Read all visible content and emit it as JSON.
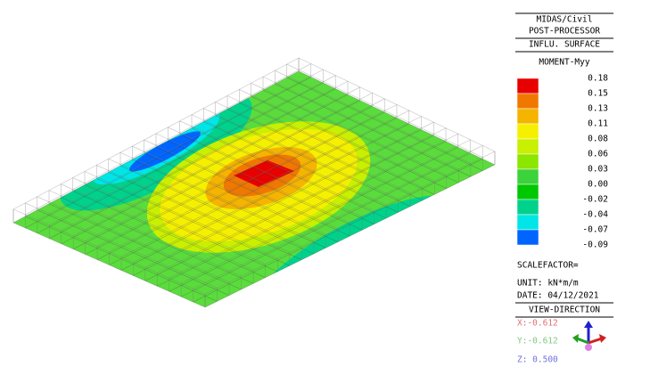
{
  "header": {
    "lines": [
      "MIDAS/Civil",
      "POST-PROCESSOR",
      "INFLU. SURFACE"
    ],
    "result": "MOMENT-Myy"
  },
  "legend": {
    "levels": [
      "0.18",
      "0.15",
      "0.13",
      "0.11",
      "0.08",
      "0.06",
      "0.03",
      "0.00",
      "-0.02",
      "-0.04",
      "-0.07",
      "-0.09"
    ],
    "colors": [
      "#e80000",
      "#f07800",
      "#f5b400",
      "#f5f000",
      "#c8f000",
      "#8ce600",
      "#3cd23c",
      "#00c800",
      "#00d28c",
      "#00e6e6",
      "#0064ff"
    ]
  },
  "info": {
    "scalefactor": "SCALEFACTOR=",
    "unit": "UNIT: kN*m/m",
    "date": "DATE: 04/12/2021"
  },
  "view": {
    "title": "VIEW-DIRECTION",
    "x": "X:-0.612",
    "y": "Y:-0.612",
    "z": "Z: 0.500"
  }
}
